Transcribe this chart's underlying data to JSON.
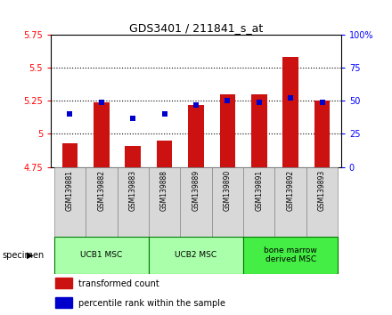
{
  "title": "GDS3401 / 211841_s_at",
  "samples": [
    "GSM139881",
    "GSM139882",
    "GSM139883",
    "GSM139888",
    "GSM139889",
    "GSM139890",
    "GSM139891",
    "GSM139892",
    "GSM139893"
  ],
  "transformed_counts": [
    4.93,
    5.24,
    4.91,
    4.95,
    5.22,
    5.3,
    5.3,
    5.58,
    5.25
  ],
  "percentile_ranks": [
    40,
    49,
    37,
    40,
    47,
    50,
    49,
    52,
    49
  ],
  "ylim_left": [
    4.75,
    5.75
  ],
  "ylim_right": [
    0,
    100
  ],
  "yticks_left": [
    4.75,
    5.0,
    5.25,
    5.5,
    5.75
  ],
  "ytick_labels_left": [
    "4.75",
    "5",
    "5.25",
    "5.5",
    "5.75"
  ],
  "yticks_right": [
    0,
    25,
    50,
    75,
    100
  ],
  "ytick_labels_right": [
    "0",
    "25",
    "50",
    "75",
    "100%"
  ],
  "groups": [
    {
      "label": "UCB1 MSC",
      "indices": [
        0,
        1,
        2
      ],
      "color": "#aaffaa"
    },
    {
      "label": "UCB2 MSC",
      "indices": [
        3,
        4,
        5
      ],
      "color": "#aaffaa"
    },
    {
      "label": "bone marrow\nderived MSC",
      "indices": [
        6,
        7,
        8
      ],
      "color": "#44ee44"
    }
  ],
  "bar_color": "#cc1111",
  "marker_color": "#0000cc",
  "bar_bottom": 4.75,
  "bar_width": 0.5,
  "bg_color": "#ffffff",
  "plot_bg_color": "#ffffff",
  "legend_items": [
    {
      "color": "#cc1111",
      "label": "transformed count"
    },
    {
      "color": "#0000cc",
      "label": "percentile rank within the sample"
    }
  ],
  "grid_yticks": [
    5.0,
    5.25,
    5.5
  ],
  "specimen_label": "specimen"
}
